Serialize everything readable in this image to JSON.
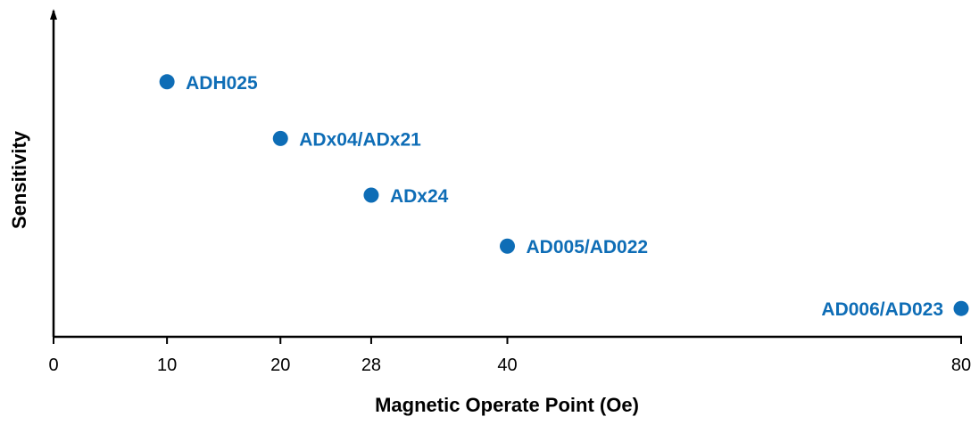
{
  "chart_data": {
    "type": "scatter",
    "title": "",
    "xlabel": "Magnetic Operate Point (Oe)",
    "ylabel": "Sensitivity",
    "xlim": [
      0,
      80
    ],
    "x_ticks": [
      "0",
      "10",
      "20",
      "28",
      "40",
      "80"
    ],
    "grid": false,
    "point_color": "#0E6DB6",
    "axis_color": "#000000",
    "points": [
      {
        "label": "ADH025",
        "x": 10,
        "y": 9.0,
        "label_side": "right"
      },
      {
        "label": "ADx04/ADx21",
        "x": 20,
        "y": 7.0,
        "label_side": "right"
      },
      {
        "label": "ADx24",
        "x": 28,
        "y": 5.0,
        "label_side": "right"
      },
      {
        "label": "AD005/AD022",
        "x": 40,
        "y": 3.2,
        "label_side": "right"
      },
      {
        "label": "AD006/AD023",
        "x": 80,
        "y": 1.0,
        "label_side": "left"
      }
    ]
  }
}
